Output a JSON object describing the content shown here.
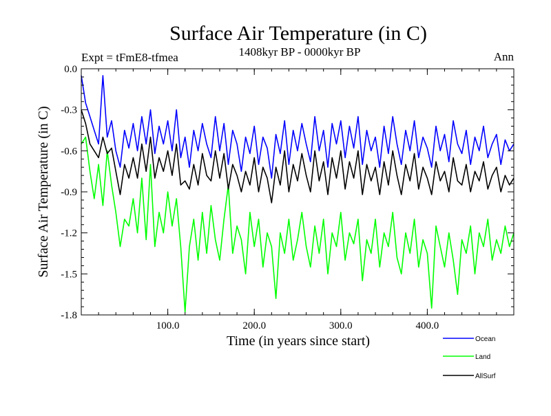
{
  "chart_data": {
    "type": "line",
    "title": "Surface Air Temperature (in C)",
    "subtitle_left": "Expt = tFmE8-tfmea",
    "subtitle_center": "1408kyr BP - 0000kyr BP",
    "subtitle_right": "Ann",
    "xlabel": "Time (in years since start)",
    "ylabel": "Surface Air Temperature (in C)",
    "xlim": [
      0,
      500
    ],
    "ylim": [
      -1.8,
      0.0
    ],
    "x_ticks": [
      100,
      200,
      300,
      400
    ],
    "x_tick_labels": [
      "100.0",
      "200.0",
      "300.0",
      "400.0"
    ],
    "y_ticks": [
      0.0,
      -0.3,
      -0.6,
      -0.9,
      -1.2,
      -1.5,
      -1.8
    ],
    "y_tick_labels": [
      "0.0",
      "-0.3",
      "-0.6",
      "-0.9",
      "-1.2",
      "-1.5",
      "-1.8"
    ],
    "x": [
      0,
      5,
      10,
      15,
      20,
      25,
      30,
      35,
      40,
      45,
      50,
      55,
      60,
      65,
      70,
      75,
      80,
      85,
      90,
      95,
      100,
      105,
      110,
      115,
      120,
      125,
      130,
      135,
      140,
      145,
      150,
      155,
      160,
      165,
      170,
      175,
      180,
      185,
      190,
      195,
      200,
      205,
      210,
      215,
      220,
      225,
      230,
      235,
      240,
      245,
      250,
      255,
      260,
      265,
      270,
      275,
      280,
      285,
      290,
      295,
      300,
      305,
      310,
      315,
      320,
      325,
      330,
      335,
      340,
      345,
      350,
      355,
      360,
      365,
      370,
      375,
      380,
      385,
      390,
      395,
      400,
      405,
      410,
      415,
      420,
      425,
      430,
      435,
      440,
      445,
      450,
      455,
      460,
      465,
      470,
      475,
      480,
      485,
      490,
      495,
      500
    ],
    "series": [
      {
        "name": "Ocean",
        "color": "#0000ff",
        "values": [
          -0.05,
          -0.25,
          -0.35,
          -0.45,
          -0.55,
          -0.05,
          -0.5,
          -0.38,
          -0.6,
          -0.72,
          -0.45,
          -0.58,
          -0.4,
          -0.6,
          -0.35,
          -0.55,
          -0.3,
          -0.62,
          -0.42,
          -0.55,
          -0.38,
          -0.6,
          -0.3,
          -0.65,
          -0.5,
          -0.72,
          -0.45,
          -0.6,
          -0.4,
          -0.55,
          -0.65,
          -0.35,
          -0.6,
          -0.4,
          -0.7,
          -0.45,
          -0.55,
          -0.75,
          -0.5,
          -0.62,
          -0.42,
          -0.7,
          -0.5,
          -0.58,
          -0.8,
          -0.48,
          -0.62,
          -0.38,
          -0.7,
          -0.45,
          -0.6,
          -0.4,
          -0.55,
          -0.68,
          -0.35,
          -0.6,
          -0.45,
          -0.72,
          -0.4,
          -0.55,
          -0.38,
          -0.65,
          -0.42,
          -0.58,
          -0.35,
          -0.7,
          -0.45,
          -0.6,
          -0.5,
          -0.72,
          -0.42,
          -0.62,
          -0.35,
          -0.55,
          -0.7,
          -0.45,
          -0.6,
          -0.38,
          -0.65,
          -0.5,
          -0.58,
          -0.72,
          -0.42,
          -0.6,
          -0.48,
          -0.68,
          -0.38,
          -0.55,
          -0.62,
          -0.45,
          -0.7,
          -0.5,
          -0.6,
          -0.42,
          -0.65,
          -0.55,
          -0.48,
          -0.7,
          -0.52,
          -0.6,
          -0.55
        ]
      },
      {
        "name": "Land",
        "color": "#00ff00",
        "values": [
          -0.55,
          -0.5,
          -0.75,
          -0.95,
          -0.7,
          -1.0,
          -0.6,
          -0.85,
          -1.05,
          -1.3,
          -1.1,
          -1.15,
          -0.95,
          -1.2,
          -0.8,
          -1.25,
          -0.7,
          -1.3,
          -1.05,
          -1.2,
          -0.9,
          -1.15,
          -0.95,
          -1.3,
          -1.78,
          -1.3,
          -1.1,
          -1.4,
          -1.05,
          -1.35,
          -1.0,
          -1.25,
          -1.4,
          -1.1,
          -0.85,
          -1.35,
          -1.15,
          -1.25,
          -1.5,
          -1.05,
          -1.3,
          -1.1,
          -1.45,
          -1.2,
          -1.3,
          -1.68,
          -1.2,
          -1.35,
          -1.1,
          -1.4,
          -1.25,
          -1.05,
          -1.3,
          -1.45,
          -1.15,
          -1.35,
          -1.1,
          -1.5,
          -1.2,
          -1.3,
          -1.05,
          -1.4,
          -1.2,
          -1.28,
          -1.1,
          -1.55,
          -1.25,
          -1.35,
          -1.1,
          -1.45,
          -1.2,
          -1.3,
          -1.05,
          -1.38,
          -1.5,
          -1.2,
          -1.35,
          -1.1,
          -1.45,
          -1.25,
          -1.35,
          -1.75,
          -1.15,
          -1.3,
          -1.45,
          -1.2,
          -1.4,
          -1.65,
          -1.25,
          -1.35,
          -1.15,
          -1.5,
          -1.2,
          -1.3,
          -1.1,
          -1.4,
          -1.25,
          -1.35,
          -1.15,
          -1.3,
          -1.2
        ]
      },
      {
        "name": "AllSurf",
        "color": "#000000",
        "values": [
          -0.3,
          -0.4,
          -0.55,
          -0.6,
          -0.65,
          -0.5,
          -0.62,
          -0.58,
          -0.75,
          -0.92,
          -0.7,
          -0.8,
          -0.65,
          -0.8,
          -0.55,
          -0.75,
          -0.5,
          -0.8,
          -0.65,
          -0.75,
          -0.6,
          -0.78,
          -0.55,
          -0.85,
          -0.82,
          -0.88,
          -0.7,
          -0.85,
          -0.62,
          -0.78,
          -0.82,
          -0.6,
          -0.8,
          -0.62,
          -0.88,
          -0.7,
          -0.78,
          -0.9,
          -0.75,
          -0.85,
          -0.65,
          -0.9,
          -0.72,
          -0.8,
          -0.98,
          -0.72,
          -0.85,
          -0.6,
          -0.9,
          -0.7,
          -0.82,
          -0.62,
          -0.78,
          -0.9,
          -0.6,
          -0.82,
          -0.68,
          -0.92,
          -0.65,
          -0.8,
          -0.6,
          -0.88,
          -0.68,
          -0.8,
          -0.6,
          -0.92,
          -0.7,
          -0.82,
          -0.72,
          -0.92,
          -0.68,
          -0.85,
          -0.6,
          -0.78,
          -0.92,
          -0.7,
          -0.82,
          -0.62,
          -0.88,
          -0.72,
          -0.8,
          -0.92,
          -0.68,
          -0.82,
          -0.75,
          -0.9,
          -0.65,
          -0.82,
          -0.85,
          -0.7,
          -0.9,
          -0.75,
          -0.82,
          -0.68,
          -0.88,
          -0.78,
          -0.72,
          -0.9,
          -0.78,
          -0.85,
          -0.8
        ]
      }
    ],
    "legend_position": "bottom-right"
  }
}
